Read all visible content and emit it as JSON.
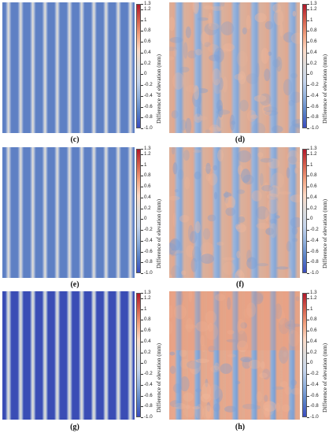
{
  "colorbar": {
    "label": "Difference of elevation (mm)",
    "ticks": [
      "1.3",
      "1.2",
      "1",
      "0.8",
      "0.6",
      "0.4",
      "0.2",
      "0",
      "-0.2",
      "-0.4",
      "-0.6",
      "-0.8",
      "-1.0"
    ],
    "min": -1.0,
    "max": 1.3,
    "colors": [
      "#b2182b",
      "#d6604d",
      "#f4a582",
      "#fddbc7",
      "#dddddd",
      "#c6d5ec",
      "#92b1dc",
      "#5a82c6",
      "#3b4cc0"
    ]
  },
  "panels": [
    {
      "id": "c",
      "caption": "(c)",
      "type": "simulated",
      "stripe_color": "#5e80c4"
    },
    {
      "id": "d",
      "caption": "(d)",
      "type": "measured"
    },
    {
      "id": "e",
      "caption": "(e)",
      "type": "simulated",
      "stripe_color": "#5e80c4"
    },
    {
      "id": "f",
      "caption": "(f)",
      "type": "measured"
    },
    {
      "id": "g",
      "caption": "(g)",
      "type": "simulated",
      "stripe_color": "#3a4db5"
    },
    {
      "id": "h",
      "caption": "(h)",
      "type": "measured"
    }
  ]
}
